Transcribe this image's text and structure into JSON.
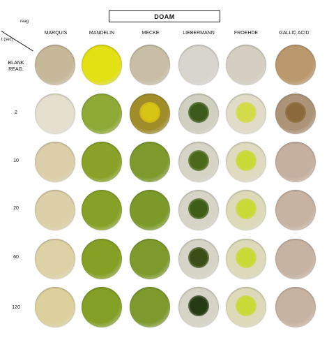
{
  "title": "DOAM",
  "corner": {
    "top_label": "reag",
    "bottom_label": "t (sec)"
  },
  "reagents": [
    {
      "name": "MARQUIS"
    },
    {
      "name": "MANDELIN"
    },
    {
      "name": "MECKE"
    },
    {
      "name": "LIEBERMANN"
    },
    {
      "name": "FROEHDE"
    },
    {
      "name": "GALLIC ACID"
    }
  ],
  "rows": [
    {
      "label": "BLANK\nREAG."
    },
    {
      "label": "2"
    },
    {
      "label": "10"
    },
    {
      "label": "20"
    },
    {
      "label": "60"
    },
    {
      "label": "120"
    }
  ],
  "well_colors": [
    [
      "#c6b99a",
      "#e3e014",
      "#c8bea5",
      "#d8d5ce",
      "#d5cfc3",
      "#b9996d"
    ],
    [
      "#e5dfd0",
      "#8ea936",
      "#a08d2a",
      "#d0d0c0",
      "#e0dcc8",
      "#ad9479"
    ],
    [
      "#dacfa8",
      "#8aa228",
      "#7e9a2c",
      "#d6d4c6",
      "#dedbc0",
      "#c5b0a0"
    ],
    [
      "#dbd0a8",
      "#86a126",
      "#7c9a2a",
      "#d6d4c6",
      "#dcdab8",
      "#c7b3a2"
    ],
    [
      "#ddd2a6",
      "#86a026",
      "#7f9a2c",
      "#d6d4c6",
      "#dcdab8",
      "#c7b3a2"
    ],
    [
      "#dcd09c",
      "#849f26",
      "#7e9a2c",
      "#d6d4c6",
      "#dcdab8",
      "#c7b3a2"
    ]
  ],
  "spot_colors": [
    [
      null,
      null,
      null,
      null,
      null,
      null
    ],
    [
      null,
      null,
      "#d8c414",
      "#3c5a1a",
      "#d2dc48",
      "#8a6a3a"
    ],
    [
      null,
      null,
      null,
      "#4a6a1a",
      "#c8da36",
      null
    ],
    [
      null,
      null,
      null,
      "#3e5e18",
      "#c8da36",
      null
    ],
    [
      null,
      null,
      null,
      "#3a4e16",
      "#c8da36",
      null
    ],
    [
      null,
      null,
      null,
      "#263a14",
      "#c8da36",
      null
    ]
  ]
}
